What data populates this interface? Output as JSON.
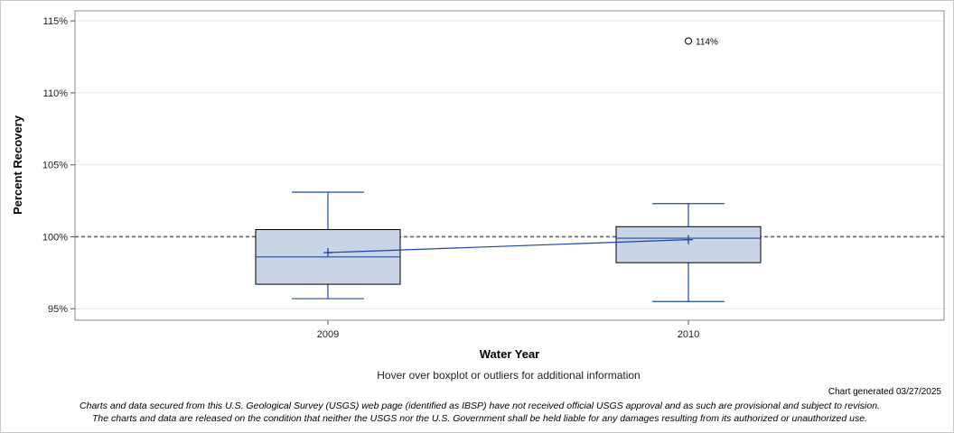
{
  "chart_data": {
    "type": "box",
    "xlabel": "Water Year",
    "ylabel": "Percent Recovery",
    "ylim": [
      94.2,
      115.7
    ],
    "yticks": [
      95,
      100,
      105,
      110,
      115
    ],
    "ytick_labels": [
      "95%",
      "100%",
      "105%",
      "110%",
      "115%"
    ],
    "reference_line": 100,
    "categories": [
      "2009",
      "2010"
    ],
    "boxes": [
      {
        "category": "2009",
        "whisker_low": 95.7,
        "q1": 96.7,
        "median": 98.6,
        "q3": 100.5,
        "whisker_high": 103.1,
        "mean": 98.9
      },
      {
        "category": "2010",
        "whisker_low": 95.5,
        "q1": 98.2,
        "median": 99.9,
        "q3": 100.7,
        "whisker_high": 102.3,
        "mean": 99.8
      }
    ],
    "outliers": [
      {
        "category": "2010",
        "value": 113.6,
        "label": "114%"
      }
    ],
    "colors": {
      "box_fill": "#c9d5e6",
      "box_stroke": "#000000",
      "whisker": "#1f4e9a",
      "mean_line": "#1f3faa",
      "reference_line": "#666666",
      "grid": "#e6e6e6"
    }
  },
  "footer": {
    "hover_hint": "Hover over boxplot or outliers for additional information",
    "generated": "Chart generated 03/27/2025",
    "disclaimer_line1": "Charts and data secured from this U.S. Geological Survey (USGS) web page (identified as IBSP) have not received official USGS approval and as such are provisional and subject to revision.",
    "disclaimer_line2": "The charts and data are released on the condition that neither the USGS nor the U.S. Government shall be held liable for any damages resulting from its authorized or unauthorized use."
  }
}
